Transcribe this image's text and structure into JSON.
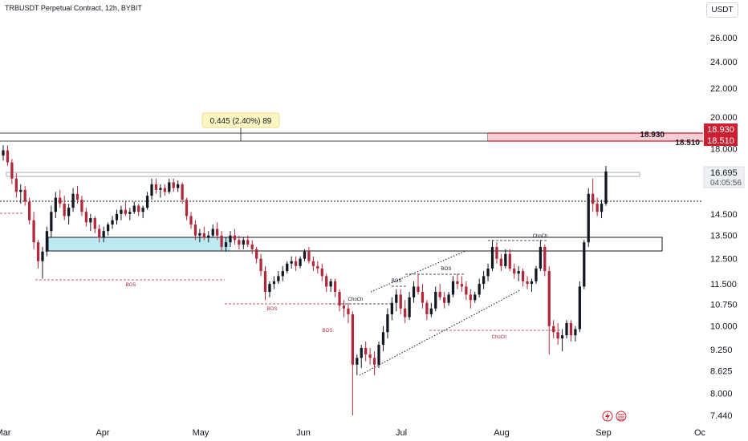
{
  "header": {
    "title": "TRBUSDT Perpetual Contract, 12h, BYBIT",
    "currency": "USDT"
  },
  "colors": {
    "up": "#131722",
    "down": "#b2283a",
    "level_red": "#cc1f32",
    "zone_blue": "#bde9f1",
    "text": "#131722"
  },
  "chart_data": {
    "type": "candlestick",
    "axis": {
      "y_ticks": [
        "26.000",
        "24.000",
        "22.000",
        "20.000",
        "18.000",
        "14.500",
        "13.500",
        "12.500",
        "11.500",
        "10.750",
        "10.000",
        "9.250",
        "8.625",
        "8.000",
        "7.440"
      ],
      "x_ticks": [
        "Mar",
        "Apr",
        "May",
        "Jun",
        "Jul",
        "Aug",
        "Sep",
        "Oc"
      ],
      "y_scale": "log"
    },
    "price_labels": {
      "upper": "18.930",
      "lower": "18.510",
      "last": "16.695",
      "countdown": "04:05:56"
    },
    "measure_box": "0.445 (2.40%) 89",
    "annotations": [
      "BOS",
      "BOS",
      "BOS",
      "ChoCh",
      "BOS",
      "BOS",
      "ChoCh",
      "ChoCh"
    ],
    "ohlc": [
      [
        17.6,
        18.2,
        17.3,
        17.9
      ],
      [
        17.9,
        18.2,
        17.0,
        17.2
      ],
      [
        17.2,
        17.4,
        16.0,
        16.3
      ],
      [
        16.3,
        16.6,
        15.3,
        15.6
      ],
      [
        15.6,
        16.0,
        15.0,
        15.7
      ],
      [
        15.7,
        15.9,
        14.9,
        15.1
      ],
      [
        15.1,
        15.3,
        14.0,
        14.2
      ],
      [
        14.2,
        14.6,
        12.9,
        13.2
      ],
      [
        13.2,
        13.3,
        12.1,
        12.4
      ],
      [
        12.4,
        13.0,
        11.7,
        12.8
      ],
      [
        12.8,
        13.9,
        12.6,
        13.7
      ],
      [
        13.7,
        14.9,
        13.4,
        14.6
      ],
      [
        14.6,
        15.6,
        14.3,
        15.3
      ],
      [
        15.3,
        15.7,
        14.8,
        15.0
      ],
      [
        15.0,
        15.4,
        14.2,
        14.4
      ],
      [
        14.4,
        15.0,
        14.0,
        14.8
      ],
      [
        14.8,
        15.8,
        14.6,
        15.5
      ],
      [
        15.5,
        15.9,
        15.0,
        15.2
      ],
      [
        15.2,
        15.4,
        14.4,
        14.6
      ],
      [
        14.6,
        14.8,
        13.9,
        14.1
      ],
      [
        14.1,
        14.5,
        13.7,
        14.3
      ],
      [
        14.3,
        14.4,
        13.6,
        13.8
      ],
      [
        13.8,
        14.0,
        13.2,
        13.4
      ],
      [
        13.4,
        13.9,
        13.2,
        13.7
      ],
      [
        13.7,
        14.1,
        13.5,
        14.0
      ],
      [
        14.0,
        14.4,
        13.8,
        14.2
      ],
      [
        14.2,
        14.7,
        14.0,
        14.5
      ],
      [
        14.5,
        14.9,
        14.2,
        14.7
      ],
      [
        14.7,
        15.1,
        14.4,
        14.5
      ],
      [
        14.5,
        14.8,
        14.2,
        14.6
      ],
      [
        14.6,
        15.1,
        14.5,
        14.9
      ],
      [
        14.9,
        15.0,
        14.4,
        14.6
      ],
      [
        14.6,
        14.9,
        14.3,
        14.8
      ],
      [
        14.8,
        15.6,
        14.7,
        15.4
      ],
      [
        15.4,
        16.3,
        15.2,
        16.0
      ],
      [
        16.0,
        16.3,
        15.5,
        15.7
      ],
      [
        15.7,
        16.0,
        15.3,
        15.8
      ],
      [
        15.8,
        16.0,
        15.4,
        15.6
      ],
      [
        15.6,
        16.3,
        15.5,
        16.1
      ],
      [
        16.1,
        16.3,
        15.6,
        15.8
      ],
      [
        15.8,
        16.2,
        15.6,
        16.0
      ],
      [
        16.0,
        16.1,
        15.0,
        15.2
      ],
      [
        15.2,
        15.3,
        14.2,
        14.4
      ],
      [
        14.4,
        14.6,
        13.8,
        14.0
      ],
      [
        14.0,
        14.2,
        13.3,
        13.5
      ],
      [
        13.5,
        13.8,
        13.2,
        13.6
      ],
      [
        13.6,
        13.9,
        13.3,
        13.4
      ],
      [
        13.4,
        13.7,
        13.2,
        13.5
      ],
      [
        13.5,
        14.0,
        13.4,
        13.8
      ],
      [
        13.8,
        14.1,
        13.3,
        13.5
      ],
      [
        13.5,
        13.7,
        12.8,
        13.0
      ],
      [
        13.0,
        13.4,
        12.8,
        13.2
      ],
      [
        13.2,
        13.7,
        13.0,
        13.5
      ],
      [
        13.5,
        13.8,
        13.1,
        13.3
      ],
      [
        13.3,
        13.5,
        12.9,
        13.1
      ],
      [
        13.1,
        13.4,
        12.9,
        13.3
      ],
      [
        13.3,
        13.5,
        13.0,
        13.1
      ],
      [
        13.1,
        13.3,
        12.7,
        12.9
      ],
      [
        12.9,
        13.0,
        12.3,
        12.5
      ],
      [
        12.5,
        12.7,
        11.8,
        12.0
      ],
      [
        12.0,
        12.2,
        10.9,
        11.2
      ],
      [
        11.2,
        11.6,
        11.0,
        11.5
      ],
      [
        11.5,
        11.8,
        11.3,
        11.6
      ],
      [
        11.6,
        12.0,
        11.5,
        11.8
      ],
      [
        11.8,
        12.2,
        11.6,
        12.0
      ],
      [
        12.0,
        12.4,
        11.9,
        12.3
      ],
      [
        12.3,
        12.6,
        12.1,
        12.4
      ],
      [
        12.4,
        12.6,
        12.0,
        12.2
      ],
      [
        12.2,
        12.6,
        12.1,
        12.5
      ],
      [
        12.5,
        12.9,
        12.4,
        12.8
      ],
      [
        12.8,
        13.0,
        12.3,
        12.4
      ],
      [
        12.4,
        12.6,
        12.0,
        12.2
      ],
      [
        12.2,
        12.4,
        11.9,
        12.1
      ],
      [
        12.1,
        12.3,
        11.6,
        11.8
      ],
      [
        11.8,
        11.9,
        11.2,
        11.4
      ],
      [
        11.4,
        11.7,
        11.2,
        11.6
      ],
      [
        11.6,
        11.7,
        11.0,
        11.2
      ],
      [
        11.2,
        11.3,
        10.5,
        10.7
      ],
      [
        10.7,
        10.9,
        10.3,
        10.6
      ],
      [
        10.6,
        10.8,
        10.1,
        10.4
      ],
      [
        10.4,
        10.5,
        7.44,
        8.8
      ],
      [
        8.8,
        9.1,
        8.5,
        9.0
      ],
      [
        9.0,
        9.4,
        8.7,
        9.3
      ],
      [
        9.3,
        9.5,
        8.9,
        9.1
      ],
      [
        9.1,
        9.3,
        8.8,
        9.0
      ],
      [
        9.0,
        9.2,
        8.5,
        8.8
      ],
      [
        8.8,
        9.5,
        8.7,
        9.4
      ],
      [
        9.4,
        10.0,
        9.2,
        9.8
      ],
      [
        9.8,
        10.6,
        9.6,
        10.4
      ],
      [
        10.4,
        11.0,
        10.2,
        10.8
      ],
      [
        10.8,
        11.3,
        10.5,
        11.1
      ],
      [
        11.1,
        11.3,
        10.4,
        10.6
      ],
      [
        10.6,
        10.9,
        10.1,
        10.3
      ],
      [
        10.3,
        11.2,
        10.2,
        11.0
      ],
      [
        11.0,
        11.6,
        10.8,
        11.4
      ],
      [
        11.4,
        11.9,
        11.1,
        11.2
      ],
      [
        11.2,
        11.5,
        10.6,
        10.8
      ],
      [
        10.8,
        10.9,
        10.2,
        10.4
      ],
      [
        10.4,
        10.8,
        10.3,
        10.6
      ],
      [
        10.6,
        11.4,
        10.5,
        11.2
      ],
      [
        11.2,
        11.5,
        10.9,
        11.0
      ],
      [
        11.0,
        11.2,
        10.6,
        10.8
      ],
      [
        10.8,
        11.2,
        10.7,
        11.1
      ],
      [
        11.1,
        11.8,
        11.0,
        11.6
      ],
      [
        11.6,
        11.9,
        11.3,
        11.5
      ],
      [
        11.5,
        11.8,
        11.2,
        11.4
      ],
      [
        11.4,
        11.6,
        10.9,
        11.1
      ],
      [
        11.1,
        11.3,
        10.6,
        10.9
      ],
      [
        10.9,
        11.2,
        10.8,
        11.1
      ],
      [
        11.1,
        11.7,
        11.0,
        11.5
      ],
      [
        11.5,
        12.0,
        11.3,
        11.8
      ],
      [
        11.8,
        12.3,
        11.6,
        12.1
      ],
      [
        12.1,
        13.3,
        12.0,
        13.0
      ],
      [
        13.0,
        13.2,
        12.3,
        12.5
      ],
      [
        12.5,
        12.7,
        12.0,
        12.2
      ],
      [
        12.2,
        12.9,
        12.1,
        12.7
      ],
      [
        12.7,
        12.9,
        12.0,
        12.1
      ],
      [
        12.1,
        12.3,
        11.7,
        11.9
      ],
      [
        11.9,
        12.2,
        11.6,
        12.0
      ],
      [
        12.0,
        12.1,
        11.4,
        11.6
      ],
      [
        11.6,
        11.8,
        11.3,
        11.5
      ],
      [
        11.5,
        11.7,
        11.2,
        11.6
      ],
      [
        11.6,
        12.2,
        11.5,
        12.1
      ],
      [
        12.1,
        13.3,
        12.0,
        13.0
      ],
      [
        13.0,
        13.1,
        11.8,
        12.0
      ],
      [
        12.0,
        12.2,
        9.1,
        10.0
      ],
      [
        10.0,
        10.2,
        9.6,
        9.8
      ],
      [
        9.8,
        10.1,
        9.4,
        9.6
      ],
      [
        9.6,
        9.9,
        9.2,
        9.7
      ],
      [
        9.7,
        10.2,
        9.6,
        10.1
      ],
      [
        10.1,
        10.2,
        9.5,
        9.7
      ],
      [
        9.7,
        10.0,
        9.5,
        9.9
      ],
      [
        9.9,
        11.6,
        9.8,
        11.4
      ],
      [
        11.4,
        13.3,
        11.3,
        13.2
      ],
      [
        13.2,
        15.8,
        13.0,
        15.5
      ],
      [
        15.5,
        16.3,
        14.6,
        15.0
      ],
      [
        15.0,
        15.3,
        14.4,
        14.6
      ],
      [
        14.6,
        15.2,
        14.3,
        15.0
      ],
      [
        15.0,
        17.0,
        14.9,
        16.695
      ]
    ]
  }
}
